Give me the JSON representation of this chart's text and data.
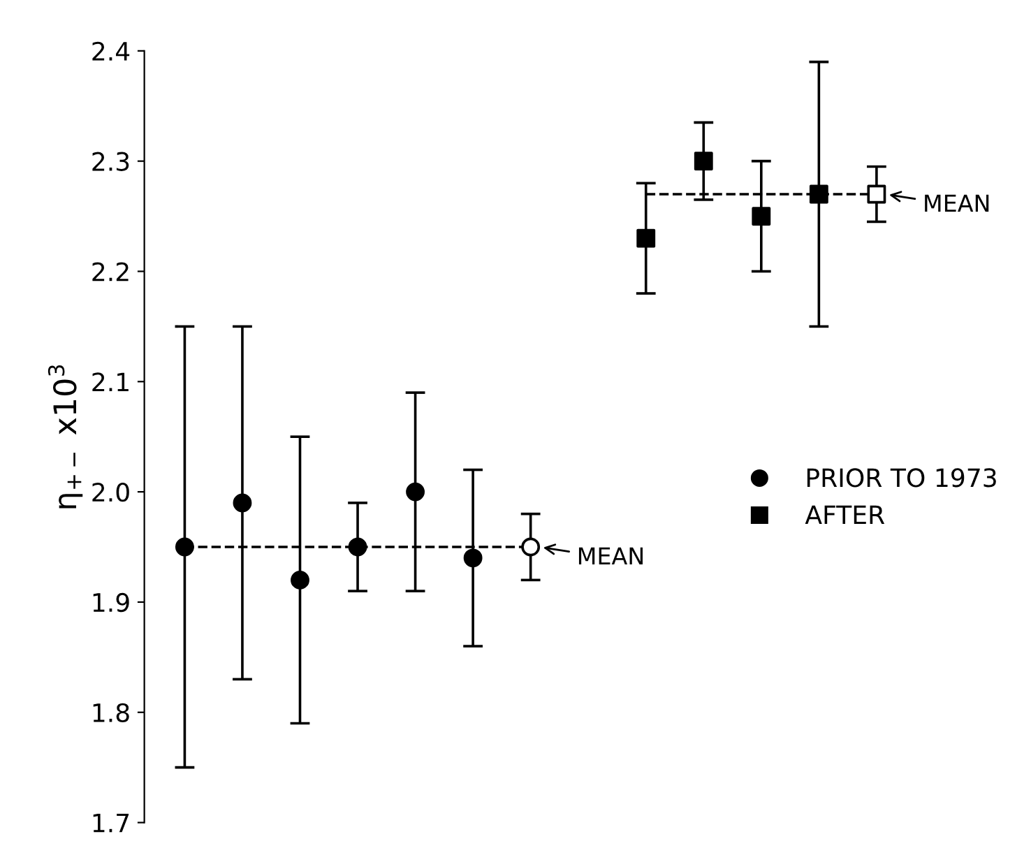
{
  "chart_data": {
    "type": "scatter",
    "ylabel": "η$_{+−}$ x10$^{3}$",
    "categories": [
      null,
      null,
      null,
      null,
      null,
      null,
      null,
      null,
      null,
      null,
      null,
      null,
      null
    ],
    "series": [
      {
        "name": "PRIOR TO 1973",
        "color": "#000000",
        "marker": "circle",
        "values": [
          1.95,
          1.99,
          1.92,
          1.95,
          2.0,
          1.94,
          null,
          null,
          null,
          null,
          null,
          null,
          null
        ],
        "errors": [
          0.2,
          0.16,
          0.13,
          0.04,
          0.09,
          0.08,
          null,
          null,
          null,
          null,
          null,
          null,
          null
        ]
      },
      {
        "name": "AFTER",
        "color": "#000000",
        "marker": "square",
        "values": [
          null,
          null,
          null,
          null,
          null,
          null,
          null,
          null,
          2.23,
          2.3,
          2.25,
          2.27,
          null
        ],
        "errors": [
          null,
          null,
          null,
          null,
          null,
          null,
          null,
          null,
          0.05,
          0.035,
          0.05,
          0.12,
          null
        ]
      },
      {
        "color": "#ffffff",
        "marker": "circle",
        "values": [
          null,
          null,
          null,
          null,
          null,
          null,
          1.95,
          null,
          null,
          null,
          null,
          null,
          null
        ],
        "errors": [
          null,
          null,
          null,
          null,
          null,
          null,
          0.03,
          null,
          null,
          null,
          null,
          null,
          null
        ]
      },
      {
        "color": "#ffffff",
        "marker": "square",
        "values": [
          null,
          null,
          null,
          null,
          null,
          null,
          null,
          null,
          null,
          null,
          null,
          null,
          2.27
        ],
        "errors": [
          null,
          null,
          null,
          null,
          null,
          null,
          null,
          null,
          null,
          null,
          null,
          null,
          0.025
        ]
      },
      {
        "type": "line",
        "color": "#000000",
        "line_style": "dashed",
        "marker": "none",
        "values": [
          1.95,
          1.95,
          1.95,
          1.95,
          1.95,
          1.95,
          1.95,
          null,
          null,
          null,
          null,
          null,
          null
        ]
      },
      {
        "type": "line",
        "color": "#000000",
        "line_style": "dashed",
        "marker": "none",
        "values": [
          null,
          null,
          null,
          null,
          null,
          null,
          null,
          null,
          2.27,
          2.27,
          2.27,
          2.27,
          2.27
        ]
      }
    ],
    "annotations": [
      "MEAN",
      "MEAN"
    ],
    "ylim": [
      1.7,
      2.4
    ],
    "yticks": [
      1.7,
      1.8,
      1.9,
      {
        "value": 2,
        "label": "2.0"
      },
      2.1,
      2.2,
      2.3,
      2.4
    ],
    "legend": "right",
    "grid": false,
    "tick_labels": "y"
  }
}
